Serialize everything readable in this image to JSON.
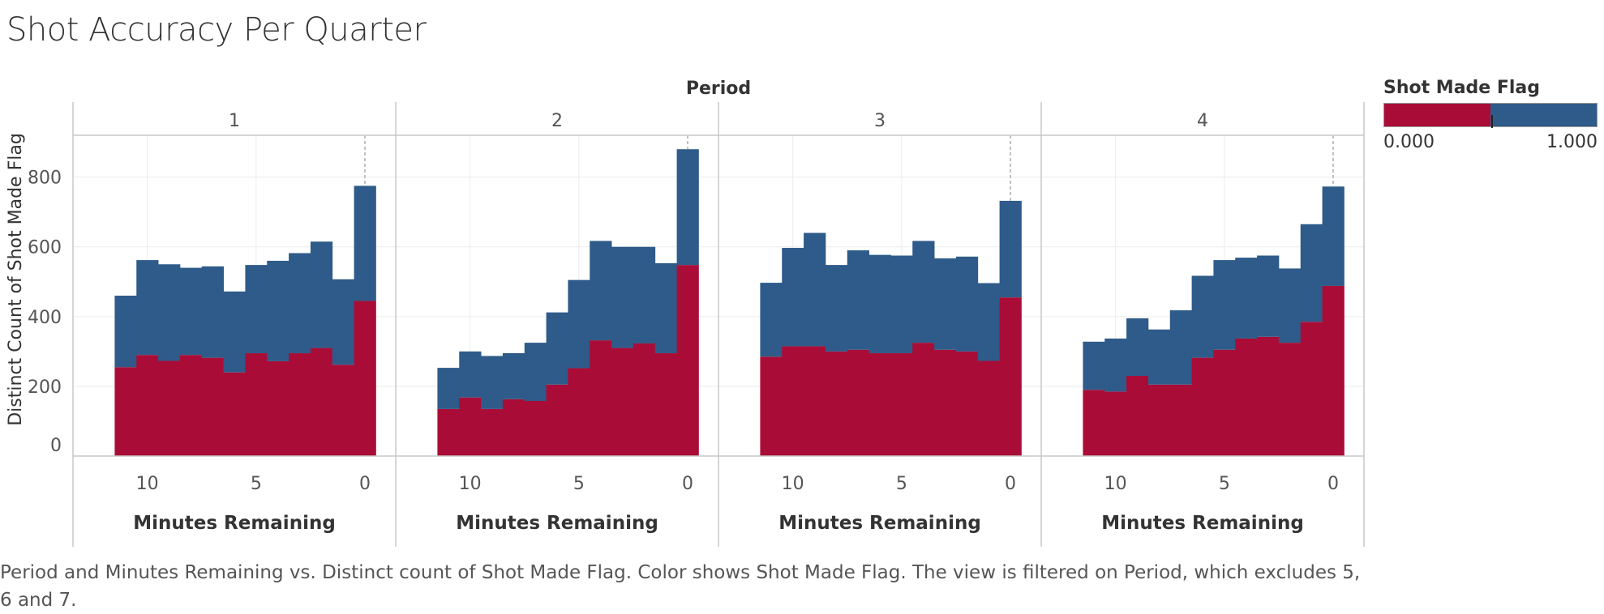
{
  "title": "Shot Accuracy Per Quarter",
  "caption": "Period and Minutes Remaining vs. Distinct count of Shot Made Flag.  Color shows Shot Made Flag. The view is filtered on Period, which excludes 5, 6 and 7.",
  "legend": {
    "title": "Shot Made Flag",
    "min_label": "0.000",
    "max_label": "1.000",
    "colors": [
      "#a90d37",
      "#2e5b89"
    ]
  },
  "chart_data": {
    "type": "bar",
    "stacked": true,
    "facet_label": "Period",
    "facets": [
      "1",
      "2",
      "3",
      "4"
    ],
    "xlabel": "Minutes Remaining",
    "ylabel": "Distinct Count of Shot Made Flag",
    "x_ticks": [
      10,
      5,
      0
    ],
    "y_ticks": [
      0,
      200,
      400,
      600,
      800
    ],
    "ylim": [
      0,
      920
    ],
    "x_domain": [
      12,
      0
    ],
    "reference_line_x": 0,
    "minutes": [
      11,
      10,
      9,
      8,
      7,
      6,
      5,
      4,
      3,
      2,
      1,
      0
    ],
    "series": [
      {
        "name": "0.000",
        "color": "#a90d37",
        "values": [
          [
            255,
            290,
            273,
            290,
            282,
            240,
            295,
            272,
            295,
            310,
            262,
            445
          ],
          [
            135,
            168,
            135,
            163,
            158,
            205,
            252,
            332,
            310,
            323,
            295,
            548
          ],
          [
            285,
            315,
            315,
            300,
            305,
            295,
            295,
            325,
            305,
            300,
            273,
            455
          ],
          [
            190,
            185,
            230,
            205,
            205,
            282,
            305,
            337,
            342,
            325,
            385,
            488
          ]
        ]
      },
      {
        "name": "1.000",
        "color": "#2e5b89",
        "values": [
          [
            205,
            272,
            277,
            250,
            262,
            232,
            253,
            288,
            287,
            305,
            245,
            330
          ],
          [
            118,
            132,
            152,
            132,
            167,
            207,
            253,
            285,
            290,
            277,
            258,
            332
          ],
          [
            212,
            282,
            325,
            248,
            285,
            282,
            280,
            292,
            262,
            272,
            223,
            277
          ],
          [
            138,
            152,
            165,
            158,
            213,
            235,
            257,
            232,
            233,
            213,
            280,
            285
          ]
        ]
      }
    ]
  }
}
